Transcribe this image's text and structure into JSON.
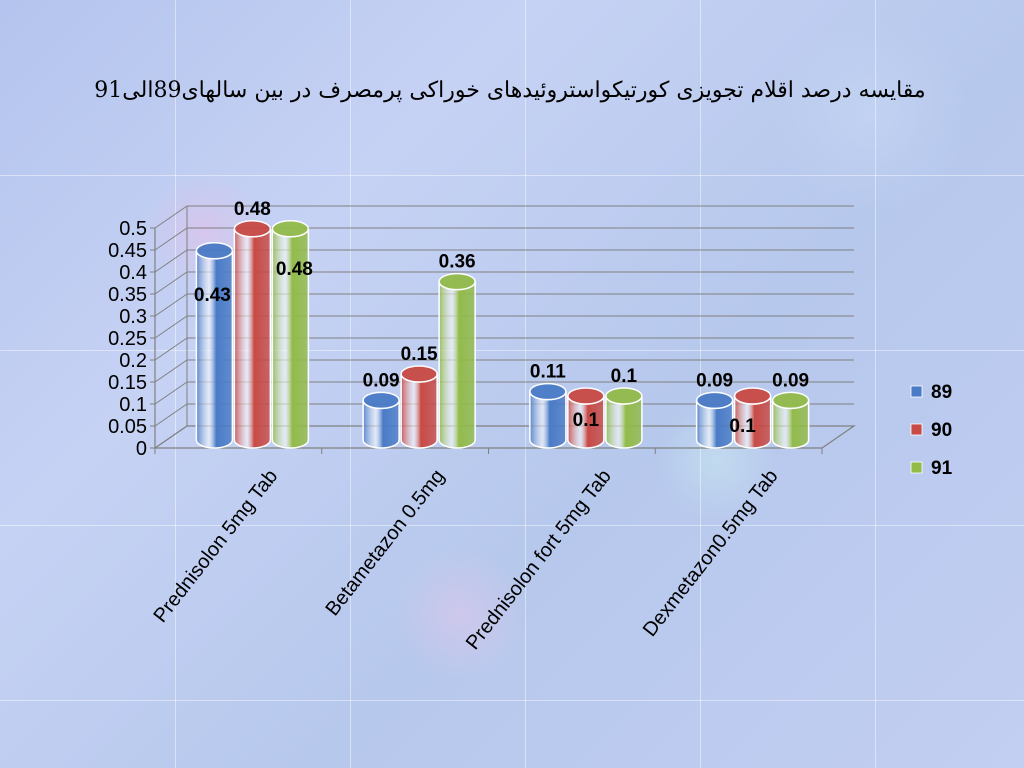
{
  "chart_data": {
    "type": "bar",
    "title": "مقایسه درصد اقلام تجویزی کورتیکواستروئیدهای خوراکی پرمصرف در بین سالهای89الی91",
    "categories": [
      "Prednisolon 5mg Tab",
      "Betametazon 0.5mg",
      "Prednisolon fort 5mg Tab",
      "Dexmetazon0.5mg Tab"
    ],
    "series": [
      {
        "name": "89",
        "values": [
          0.43,
          0.09,
          0.11,
          0.09
        ],
        "labels": [
          "0.43",
          "0.09",
          "0.11",
          "0.09"
        ],
        "color": "#4a7bc6"
      },
      {
        "name": "90",
        "values": [
          0.48,
          0.15,
          0.1,
          0.1
        ],
        "labels": [
          "0.48",
          "0.15",
          "0.1",
          "0.1"
        ],
        "color": "#c84a45"
      },
      {
        "name": "91",
        "values": [
          0.48,
          0.36,
          0.1,
          0.09
        ],
        "labels": [
          "0.48",
          "0.36",
          "0.1",
          "0.09"
        ],
        "color": "#92bb4a"
      }
    ],
    "ylim": [
      0,
      0.5
    ],
    "yticks": [
      "0",
      "0.05",
      "0.1",
      "0.15",
      "0.2",
      "0.25",
      "0.3",
      "0.35",
      "0.4",
      "0.45",
      "0.5"
    ],
    "grid": true,
    "legend": "right"
  }
}
